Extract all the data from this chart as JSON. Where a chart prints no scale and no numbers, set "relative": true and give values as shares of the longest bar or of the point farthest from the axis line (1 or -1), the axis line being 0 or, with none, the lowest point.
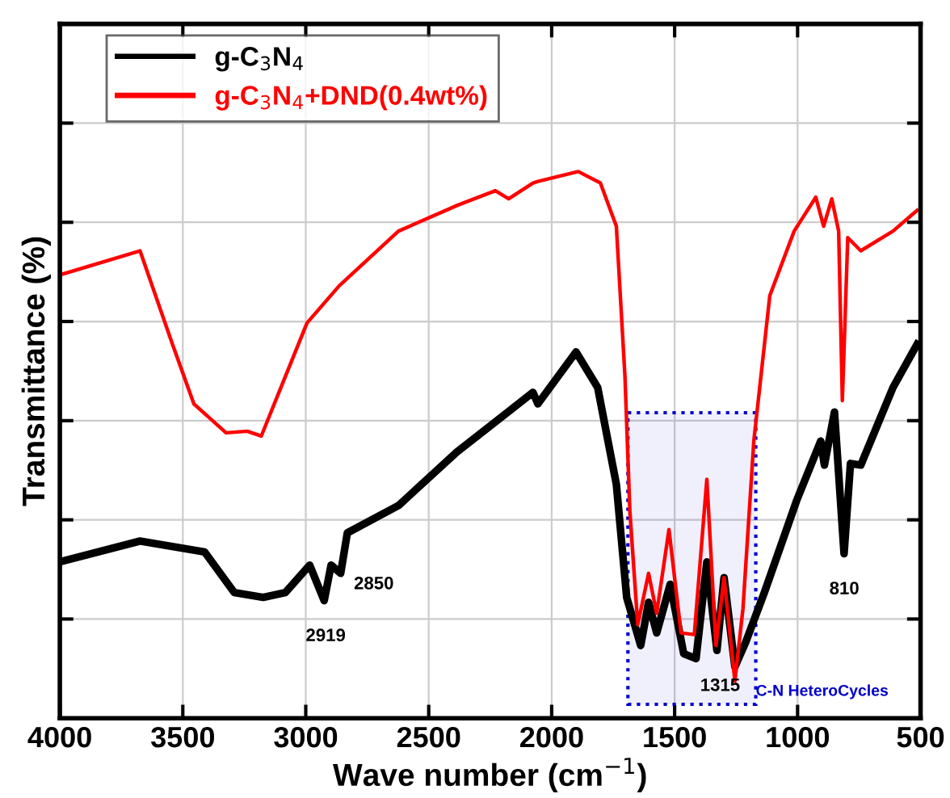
{
  "chart_data": {
    "type": "line",
    "relative": true,
    "xlabel": "Wave number (cm$^{−1}$)",
    "ylabel": "Transmittance (%)",
    "xlim": [
      4000,
      500
    ],
    "xticks": [
      4000,
      3500,
      3000,
      2500,
      2000,
      1500,
      1000,
      500
    ],
    "tick_labels": "x",
    "grid": true,
    "legend": "top left",
    "line_style": "solid",
    "marker": "none",
    "series": [
      {
        "name": "g-C$_{3}$N$_{4}$",
        "color": "#000000",
        "x": [
          4000,
          3674,
          3411,
          3291,
          3173,
          3083,
          2984,
          2925,
          2897,
          2858,
          2831,
          2623,
          2385,
          2076,
          2056,
          1901,
          1813,
          1737,
          1695,
          1638,
          1606,
          1573,
          1518,
          1463,
          1413,
          1369,
          1328,
          1299,
          1255,
          1211,
          1135,
          1004,
          906,
          891,
          850,
          811,
          785,
          743,
          612,
          514
        ],
        "values": [
          0.286,
          0.324,
          0.304,
          0.23,
          0.221,
          0.23,
          0.28,
          0.215,
          0.28,
          0.265,
          0.339,
          0.389,
          0.487,
          0.596,
          0.575,
          0.67,
          0.605,
          0.428,
          0.221,
          0.133,
          0.212,
          0.156,
          0.245,
          0.118,
          0.109,
          0.286,
          0.124,
          0.257,
          0.094,
          0.139,
          0.23,
          0.398,
          0.507,
          0.463,
          0.56,
          0.301,
          0.466,
          0.463,
          0.605,
          0.684
        ]
      },
      {
        "name": "g-C$_{3}$N$_{4}$+DND(0.4wt%)",
        "color": "#ff0000",
        "x": [
          4000,
          3674,
          3542,
          3455,
          3324,
          3238,
          3181,
          3083,
          2995,
          2864,
          2623,
          2385,
          2229,
          2175,
          2076,
          2056,
          1892,
          1802,
          1737,
          1702,
          1682,
          1650,
          1606,
          1573,
          1523,
          1474,
          1420,
          1369,
          1332,
          1299,
          1255,
          1222,
          1178,
          1113,
          1014,
          926,
          894,
          861,
          833,
          818,
          796,
          743,
          612,
          514
        ],
        "values": [
          0.811,
          0.855,
          0.684,
          0.575,
          0.522,
          0.525,
          0.516,
          0.625,
          0.723,
          0.791,
          0.891,
          0.938,
          0.965,
          0.95,
          0.979,
          0.982,
          1.0,
          0.979,
          0.9,
          0.625,
          0.378,
          0.171,
          0.265,
          0.192,
          0.345,
          0.156,
          0.153,
          0.437,
          0.133,
          0.257,
          0.068,
          0.201,
          0.507,
          0.773,
          0.891,
          0.953,
          0.9,
          0.95,
          0.891,
          0.581,
          0.879,
          0.855,
          0.891,
          0.929
        ]
      }
    ],
    "annotations": [
      {
        "text": "2919",
        "x": 2919,
        "y": 0.215
      },
      {
        "text": "2850",
        "x": 2850,
        "y": 0.265
      },
      {
        "text": "1315",
        "x": 1315,
        "y": 0.124
      },
      {
        "text": "810",
        "x": 810,
        "y": 0.301
      }
    ],
    "bands": [
      {
        "axis": "x",
        "from": 1690,
        "to": 1170,
        "label": "C-N HeteroCycles",
        "color": "#0000cc"
      }
    ]
  }
}
